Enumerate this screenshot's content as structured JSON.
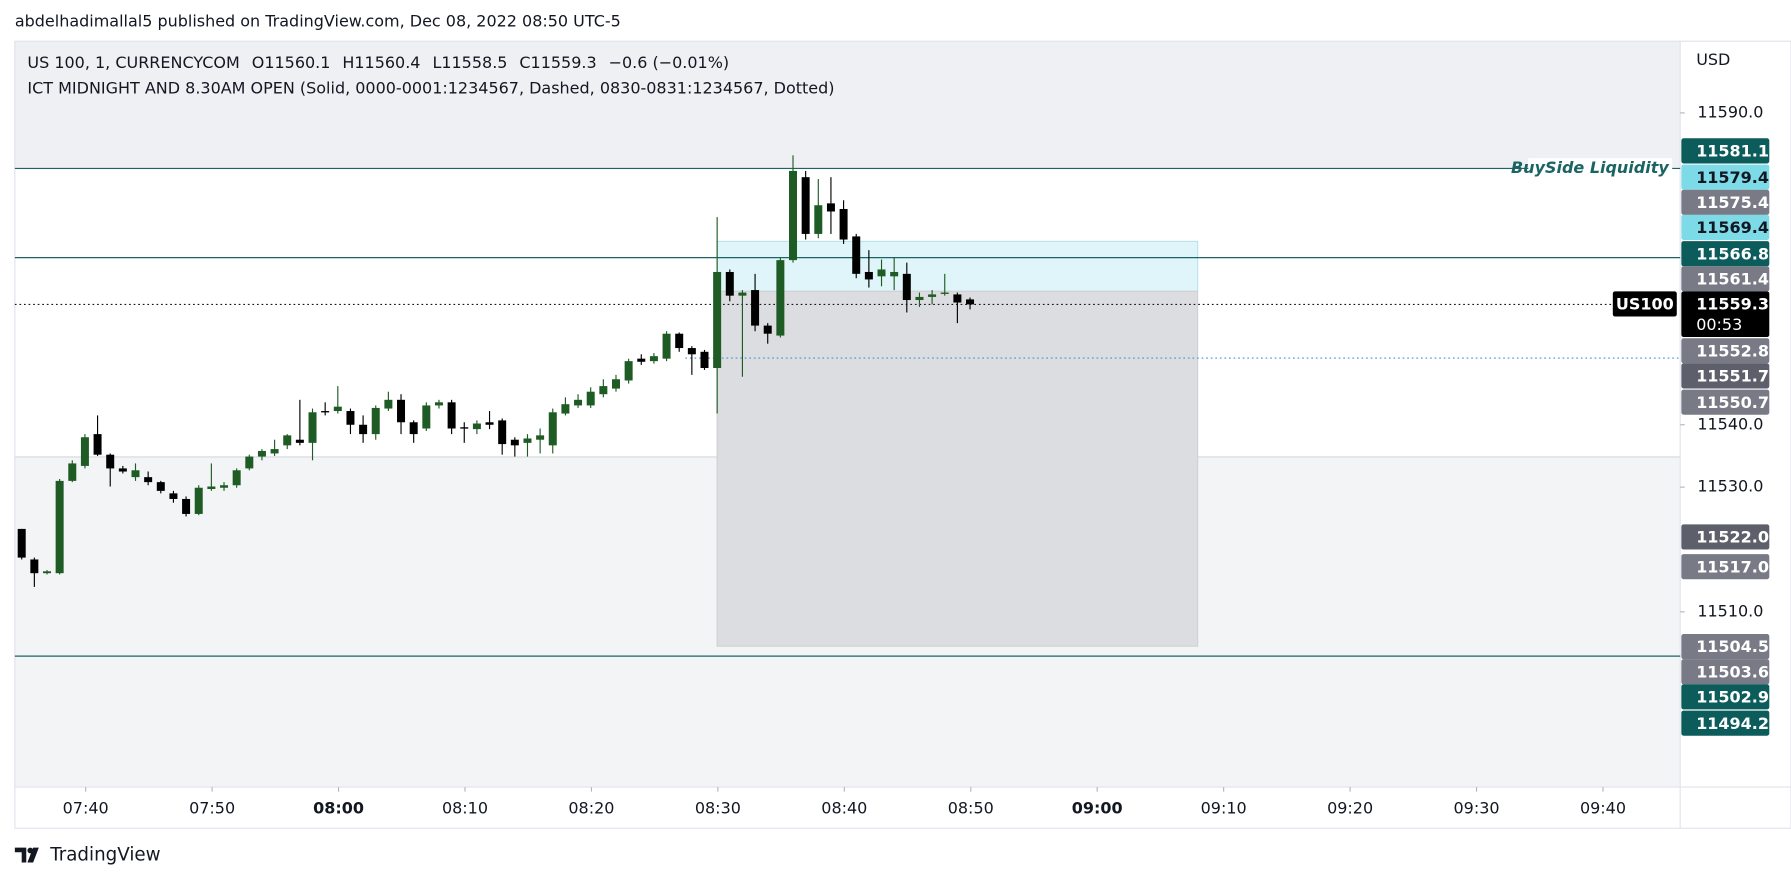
{
  "header": {
    "published": "abdelhadimallal5 published on TradingView.com, Dec 08, 2022 08:50 UTC-5"
  },
  "footer": {
    "brand": "TradingView"
  },
  "chart_data": {
    "type": "candlestick",
    "symbol": "US 100, 1, CURRENCYCOM",
    "ohlc_legend": [
      "O11560.1",
      "H11560.4",
      "L11558.5",
      "C11559.3",
      "−0.6 (−0.01%)"
    ],
    "indicator": "ICT MIDNIGHT AND 8.30AM OPEN (Solid, 0000-0001:1234567, Dashed, 0830-0831:1234567, Dotted)",
    "currency": "USD",
    "up_color": "#1f5b25",
    "down_color": "#000000",
    "open": [
      11523.3,
      11518.4,
      11516.2,
      11516.2,
      11531.0,
      11533.4,
      11538.5,
      11535.2,
      11533.0,
      11531.6,
      11531.6,
      11530.8,
      11529.0,
      11528.1,
      11525.7,
      11529.7,
      11529.9,
      11530.3,
      11533.0,
      11534.9,
      11535.4,
      11536.7,
      11537.6,
      11537.1,
      11542.2,
      11542.2,
      11542.2,
      11540.0,
      11538.5,
      11542.6,
      11544.0,
      11540.4,
      11539.4,
      11543.1,
      11543.6,
      11539.6,
      11539.3,
      11540.4,
      11540.7,
      11537.6,
      11537.1,
      11537.6,
      11536.7,
      11541.8,
      11543.1,
      11543.1,
      11544.9,
      11545.8,
      11547.1,
      11550.6,
      11550.2,
      11550.6,
      11554.6,
      11552.3,
      11551.7,
      11549.1,
      11564.5,
      11560.7,
      11561.6,
      11555.9,
      11554.3,
      11566.4,
      11579.7,
      11570.6,
      11575.5,
      11574.6,
      11570.2,
      11564.5,
      11563.8,
      11563.8,
      11564.2,
      11560.0,
      11560.5,
      11561.0,
      11560.9,
      11560.1
    ],
    "high": [
      11523.3,
      11518.7,
      11516.7,
      11531.3,
      11534.3,
      11538.5,
      11541.5,
      11535.4,
      11533.4,
      11533.8,
      11532.5,
      11531.0,
      11529.4,
      11528.5,
      11530.3,
      11533.8,
      11530.8,
      11533.0,
      11535.2,
      11536.1,
      11537.6,
      11538.5,
      11544.0,
      11542.6,
      11543.6,
      11546.2,
      11542.6,
      11541.5,
      11543.1,
      11545.3,
      11544.9,
      11540.7,
      11543.6,
      11544.0,
      11544.0,
      11540.4,
      11540.7,
      11542.2,
      11541.0,
      11538.0,
      11538.5,
      11539.4,
      11542.6,
      11544.4,
      11544.9,
      11546.0,
      11547.3,
      11548.0,
      11550.6,
      11551.3,
      11551.5,
      11555.0,
      11554.8,
      11552.6,
      11552.0,
      11573.3,
      11564.9,
      11561.6,
      11564.2,
      11556.3,
      11566.8,
      11583.2,
      11580.7,
      11579.4,
      11579.7,
      11576.0,
      11570.6,
      11568.0,
      11566.5,
      11566.8,
      11566.0,
      11561.2,
      11561.6,
      11564.2,
      11561.2,
      11560.4
    ],
    "low": [
      11518.4,
      11514.0,
      11516.0,
      11516.0,
      11530.8,
      11533.0,
      11535.0,
      11530.1,
      11532.2,
      11531.0,
      11530.3,
      11529.0,
      11527.5,
      11525.3,
      11525.5,
      11529.4,
      11529.4,
      11529.9,
      11532.7,
      11534.3,
      11535.0,
      11536.1,
      11536.7,
      11534.3,
      11541.5,
      11541.8,
      11538.5,
      11537.1,
      11537.6,
      11542.2,
      11538.5,
      11537.1,
      11539.0,
      11542.6,
      11538.5,
      11537.1,
      11538.5,
      11539.3,
      11535.2,
      11534.9,
      11534.9,
      11535.4,
      11535.4,
      11541.5,
      11542.7,
      11542.7,
      11544.4,
      11545.3,
      11546.6,
      11549.6,
      11549.8,
      11550.2,
      11551.7,
      11548.0,
      11548.8,
      11541.8,
      11559.8,
      11547.7,
      11555.0,
      11553.0,
      11554.0,
      11566.0,
      11569.7,
      11569.9,
      11570.6,
      11569.0,
      11563.5,
      11562.0,
      11562.2,
      11561.6,
      11558.0,
      11558.9,
      11559.3,
      11560.7,
      11556.3,
      11558.5
    ],
    "close": [
      11518.7,
      11516.2,
      11516.5,
      11531.0,
      11533.8,
      11538.0,
      11535.2,
      11533.0,
      11532.5,
      11532.7,
      11530.8,
      11529.4,
      11528.1,
      11525.7,
      11529.9,
      11530.1,
      11530.3,
      11532.7,
      11534.9,
      11535.8,
      11536.1,
      11538.3,
      11537.1,
      11542.0,
      11542.0,
      11542.9,
      11540.0,
      11538.5,
      11542.7,
      11544.0,
      11540.4,
      11538.5,
      11543.1,
      11543.6,
      11539.4,
      11539.4,
      11540.2,
      11540.0,
      11536.9,
      11536.7,
      11537.8,
      11538.3,
      11542.0,
      11543.3,
      11544.0,
      11545.3,
      11546.2,
      11547.3,
      11550.2,
      11550.1,
      11551.0,
      11554.6,
      11552.3,
      11551.3,
      11549.1,
      11564.5,
      11560.7,
      11561.2,
      11555.9,
      11554.6,
      11566.4,
      11580.7,
      11570.6,
      11575.2,
      11574.2,
      11569.7,
      11564.2,
      11563.3,
      11564.9,
      11564.5,
      11560.0,
      11560.5,
      11560.9,
      11561.2,
      11559.6,
      11559.3
    ],
    "ylim": [
      11481.9,
      11601.5
    ],
    "yticks": [
      {
        "value": 11590,
        "label": "11590.0"
      },
      {
        "value": 11540,
        "label": "11540.0"
      },
      {
        "value": 11530,
        "label": "11530.0"
      },
      {
        "value": 11510,
        "label": "11510.0"
      }
    ],
    "xticks": [
      "07:40",
      "07:50",
      "08:00",
      "08:10",
      "08:20",
      "08:30",
      "08:40",
      "08:50",
      "09:00",
      "09:10",
      "09:20",
      "09:30",
      "09:40"
    ],
    "levels": [
      {
        "value": 11581.1,
        "style": "solid",
        "color": "#1c6464",
        "label": "BuySide Liquidity"
      },
      {
        "value": 11566.8,
        "style": "solid",
        "color": "#1c6464"
      },
      {
        "value": 11502.9,
        "style": "solid",
        "color": "#1c6464"
      },
      {
        "value": 11550.7,
        "style": "dotted",
        "color": "#4a8fd6"
      },
      {
        "value": 11559.3,
        "style": "dotted",
        "color": "#131722"
      }
    ],
    "boxes": [
      {
        "top": 11569.4,
        "bottom": 11561.4,
        "color": "#e0f5fa"
      },
      {
        "top": 11561.4,
        "bottom": 11504.5,
        "color": "#dcdde0"
      }
    ],
    "current_tag": "US100",
    "price_labels": [
      {
        "value": 11581.1,
        "label": "11581.1",
        "color": "#0d5c5c",
        "text_color": "#ffffff"
      },
      {
        "value": 11579.4,
        "label": "11579.4",
        "color": "#7ddbe8",
        "text_color": "#131722"
      },
      {
        "value": 11575.4,
        "label": "11575.4",
        "color": "#787b86",
        "text_color": "#ffffff"
      },
      {
        "value": 11569.4,
        "label": "11569.4",
        "color": "#7ddbe8",
        "text_color": "#131722"
      },
      {
        "value": 11566.8,
        "label": "11566.8",
        "color": "#0d5c5c",
        "text_color": "#ffffff"
      },
      {
        "value": 11561.4,
        "label": "11561.4",
        "color": "#787b86",
        "text_color": "#ffffff"
      },
      {
        "value": 11559.3,
        "label": "11559.3",
        "color": "#000000",
        "text_color": "#ffffff",
        "countdown": "00:53"
      },
      {
        "value": 11552.8,
        "label": "11552.8",
        "color": "#787b86",
        "text_color": "#ffffff"
      },
      {
        "value": 11551.7,
        "label": "11551.7",
        "color": "#5d606b",
        "text_color": "#ffffff"
      },
      {
        "value": 11550.7,
        "label": "11550.7",
        "color": "#787b86",
        "text_color": "#ffffff"
      },
      {
        "value": 11522.0,
        "label": "11522.0",
        "color": "#5d606b",
        "text_color": "#ffffff"
      },
      {
        "value": 11517.0,
        "label": "11517.0",
        "color": "#787b86",
        "text_color": "#ffffff"
      },
      {
        "value": 11504.5,
        "label": "11504.5",
        "color": "#787b86",
        "text_color": "#ffffff"
      },
      {
        "value": 11503.6,
        "label": "11503.6",
        "color": "#787b86",
        "text_color": "#ffffff"
      },
      {
        "value": 11502.9,
        "label": "11502.9",
        "color": "#0d5c5c",
        "text_color": "#ffffff"
      },
      {
        "value": 11494.2,
        "label": "11494.2",
        "color": "#0d5c5c",
        "text_color": "#ffffff"
      }
    ]
  }
}
